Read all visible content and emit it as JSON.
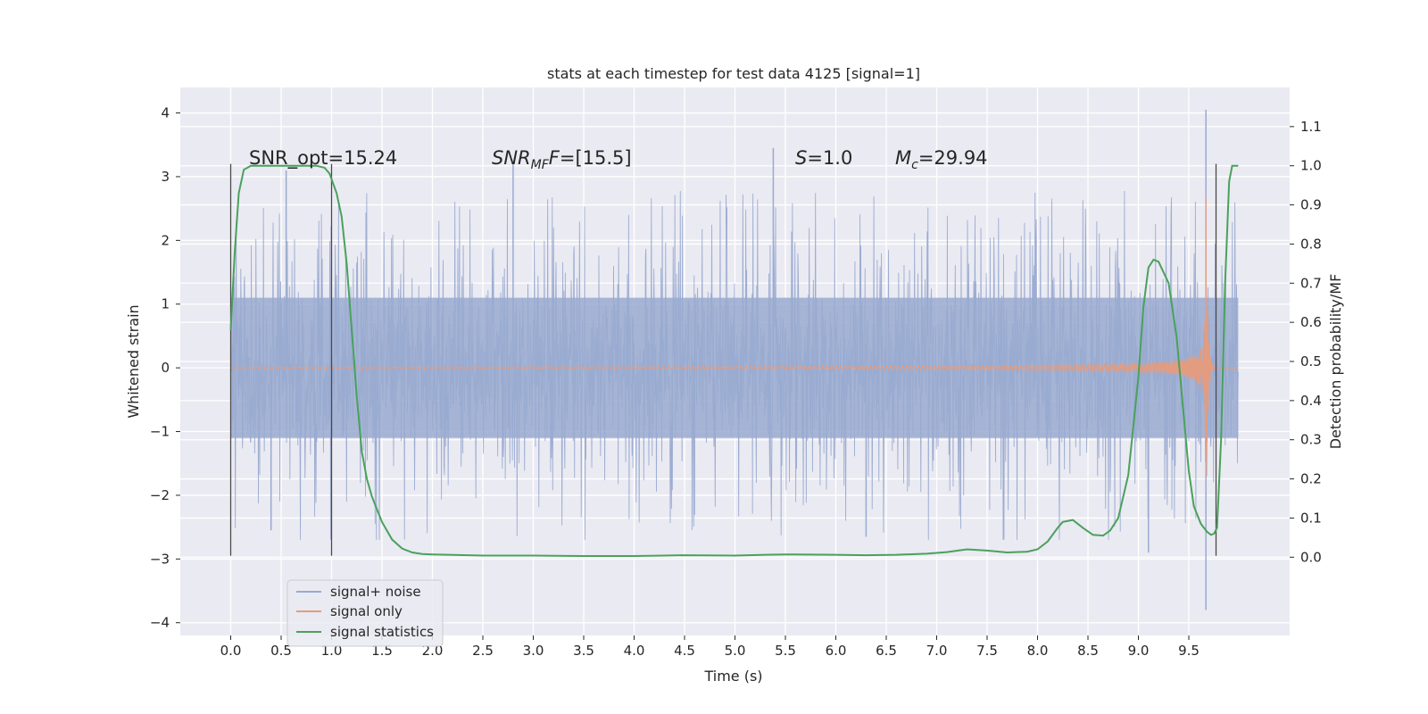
{
  "chart_data": {
    "type": "line",
    "title": "stats at each timestep for test data 4125 [signal=1]",
    "xlabel": "Time (s)",
    "ylabel": "Whitened strain",
    "y2label": "Detection probability/MF",
    "xlim": [
      -0.5,
      10.5
    ],
    "ylim": [
      -4.2,
      4.4
    ],
    "y2lim": [
      -0.2,
      1.2
    ],
    "xticks": [
      0.0,
      0.5,
      1.0,
      1.5,
      2.0,
      2.5,
      3.0,
      3.5,
      4.0,
      4.5,
      5.0,
      5.5,
      6.0,
      6.5,
      7.0,
      7.5,
      8.0,
      8.5,
      9.0,
      9.5
    ],
    "xtick_labels": [
      "0.0",
      "0.5",
      "1.0",
      "1.5",
      "2.0",
      "2.5",
      "3.0",
      "3.5",
      "4.0",
      "4.5",
      "5.0",
      "5.5",
      "6.0",
      "6.5",
      "7.0",
      "7.5",
      "8.0",
      "8.5",
      "9.0",
      "9.5"
    ],
    "yticks": [
      4,
      3,
      2,
      1,
      0,
      -1,
      -2,
      -3,
      -4
    ],
    "ytick_labels": [
      "4",
      "3",
      "2",
      "1",
      "0",
      "−1",
      "−2",
      "−3",
      "−4"
    ],
    "y2ticks": [
      1.1,
      1.0,
      0.9,
      0.8,
      0.7,
      0.6,
      0.5,
      0.4,
      0.3,
      0.2,
      0.1,
      0.0
    ],
    "y2tick_labels": [
      "1.1",
      "1.0",
      "0.9",
      "0.8",
      "0.7",
      "0.6",
      "0.5",
      "0.4",
      "0.3",
      "0.2",
      "0.1",
      "0.0"
    ],
    "grid": true,
    "legend_position": "lower-left",
    "annotations": {
      "snr_opt": "SNR_opt=15.24",
      "snr_mf_prefix": "SNR",
      "snr_mf_sub": "MF",
      "snr_mf_suffix": "=[15.5]",
      "s_prefix": "S",
      "s_suffix": "=1.0",
      "mc_prefix": "M",
      "mc_sub": "c",
      "mc_suffix": "=29.94"
    },
    "vertical_markers": [
      0.0,
      1.0,
      9.77
    ],
    "marker_range": [
      -2.95,
      3.2
    ],
    "series": [
      {
        "name": "signal+ noise",
        "color": "#99aad0",
        "style": "noise",
        "x_range": [
          0.0,
          9.99
        ],
        "typical_amplitude": 1.3,
        "peak_values": [
          [
            0.55,
            3.1
          ],
          [
            2.8,
            3.2
          ],
          [
            5.38,
            3.45
          ],
          [
            9.67,
            4.05
          ],
          [
            9.67,
            -3.8
          ],
          [
            0.4,
            -2.55
          ],
          [
            9.1,
            -2.9
          ],
          [
            6.3,
            -2.65
          ]
        ]
      },
      {
        "name": "signal only",
        "color": "#e39c80",
        "style": "chirp",
        "x_range": [
          0.0,
          9.99
        ],
        "merger_time": 9.67,
        "peak_amplitude": 2.75
      },
      {
        "name": "signal statistics",
        "color": "#4aa15c",
        "axis": "right",
        "x": [
          0.0,
          0.04,
          0.08,
          0.13,
          0.2,
          0.3,
          0.5,
          0.7,
          0.85,
          0.93,
          0.98,
          1.05,
          1.1,
          1.15,
          1.2,
          1.25,
          1.3,
          1.35,
          1.4,
          1.5,
          1.6,
          1.7,
          1.8,
          1.9,
          2.0,
          2.5,
          3.0,
          3.5,
          4.0,
          4.3,
          4.5,
          5.0,
          5.3,
          5.5,
          6.0,
          6.3,
          6.6,
          6.9,
          7.1,
          7.3,
          7.5,
          7.7,
          7.9,
          8.0,
          8.1,
          8.2,
          8.25,
          8.35,
          8.45,
          8.55,
          8.65,
          8.72,
          8.8,
          8.9,
          9.0,
          9.05,
          9.1,
          9.15,
          9.2,
          9.3,
          9.38,
          9.45,
          9.5,
          9.55,
          9.62,
          9.68,
          9.72,
          9.75,
          9.78,
          9.82,
          9.86,
          9.9,
          9.93,
          9.96,
          9.99
        ],
        "y": [
          0.58,
          0.78,
          0.93,
          0.99,
          1.0,
          1.0,
          1.0,
          1.0,
          1.0,
          0.995,
          0.98,
          0.93,
          0.87,
          0.75,
          0.58,
          0.41,
          0.27,
          0.2,
          0.155,
          0.09,
          0.045,
          0.022,
          0.012,
          0.008,
          0.007,
          0.004,
          0.004,
          0.003,
          0.003,
          0.004,
          0.005,
          0.004,
          0.006,
          0.007,
          0.006,
          0.005,
          0.006,
          0.009,
          0.013,
          0.02,
          0.017,
          0.012,
          0.014,
          0.02,
          0.04,
          0.075,
          0.09,
          0.095,
          0.075,
          0.057,
          0.055,
          0.068,
          0.1,
          0.21,
          0.46,
          0.64,
          0.74,
          0.76,
          0.755,
          0.7,
          0.56,
          0.36,
          0.22,
          0.13,
          0.085,
          0.065,
          0.057,
          0.06,
          0.075,
          0.3,
          0.7,
          0.96,
          1.0,
          1.0,
          1.0
        ]
      }
    ]
  }
}
